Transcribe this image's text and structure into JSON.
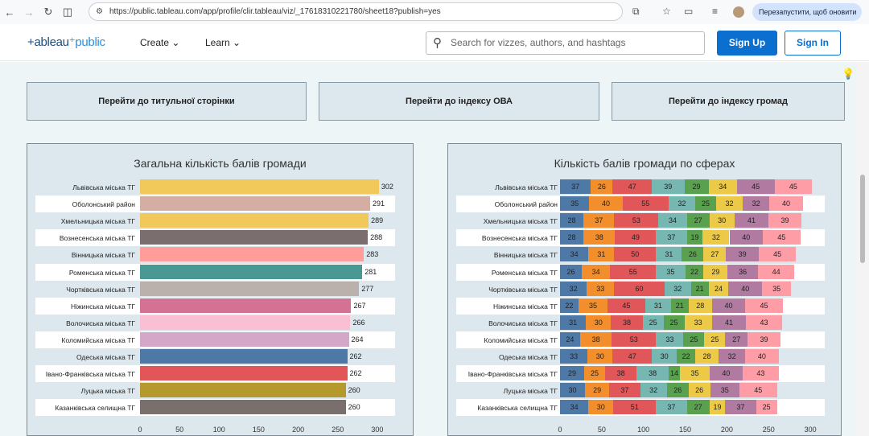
{
  "browser": {
    "url": "https://public.tableau.com/app/profile/clir.tableau/viz/_17618310221780/sheet18?publish=yes",
    "update_label": "Перезапустити, щоб оновити"
  },
  "header": {
    "logo": "+ableau",
    "logo_suffix": "public",
    "create": "Create",
    "learn": "Learn",
    "search_placeholder": "Search for vizzes, authors, and hashtags",
    "sign_up": "Sign Up",
    "sign_in": "Sign In"
  },
  "nav_buttons": [
    "Перейти до титульної сторінки",
    "Перейти до індексу ОВА",
    "Перейти до індексу громад"
  ],
  "chart_data": [
    {
      "type": "bar",
      "orientation": "horizontal",
      "title": "Загальна кількість балів громади",
      "xlim": [
        0,
        300
      ],
      "xticks": [
        0,
        50,
        100,
        150,
        200,
        250,
        300
      ],
      "categories": [
        "Львівська міська ТГ",
        "Оболонський район",
        "Хмельницька міська ТГ",
        "Вознесенська міська ТГ",
        "Вінницька міська ТГ",
        "Роменська міська ТГ",
        "Чортківська міська ТГ",
        "Ніжинська міська ТГ",
        "Волочиська міська ТГ",
        "Коломийська міська ТГ",
        "Одеська міська ТГ",
        "Івано-Франківська міська ТГ",
        "Луцька міська ТГ",
        "Казанківська селищна ТГ"
      ],
      "values": [
        302,
        291,
        289,
        288,
        283,
        281,
        277,
        267,
        266,
        264,
        262,
        262,
        260,
        260
      ],
      "colors": [
        "#f1c85a",
        "#d4aea2",
        "#f1c85a",
        "#7a6e6e",
        "#ff9d9a",
        "#499894",
        "#bab0ac",
        "#d37295",
        "#fabfd2",
        "#d4a6c8",
        "#4e79a7",
        "#e15759",
        "#b6992d",
        "#79706e"
      ]
    },
    {
      "type": "bar",
      "stacked": true,
      "orientation": "horizontal",
      "title": "Кількість балів громади по сферах",
      "xlim": [
        0,
        300
      ],
      "xticks": [
        0,
        50,
        100,
        150,
        200,
        250,
        300
      ],
      "categories": [
        "Львівська міська ТГ",
        "Оболонський район",
        "Хмельницька міська ТГ",
        "Вознесенська міська ТГ",
        "Вінницька міська ТГ",
        "Роменська міська ТГ",
        "Чортківська міська ТГ",
        "Ніжинська міська ТГ",
        "Волочиська міська ТГ",
        "Коломийська міська ТГ",
        "Одеська міська ТГ",
        "Івано-Франківська міська ТГ",
        "Луцька міська ТГ",
        "Казанківська селищна ТГ"
      ],
      "segment_colors": [
        "#4e79a7",
        "#f28e2b",
        "#e15759",
        "#76b7b2",
        "#59a14f",
        "#edc948",
        "#b07aa1",
        "#ff9da7"
      ],
      "values": [
        [
          37,
          26,
          47,
          39,
          29,
          34,
          45,
          45
        ],
        [
          35,
          40,
          55,
          32,
          25,
          32,
          32,
          40
        ],
        [
          28,
          37,
          53,
          34,
          27,
          30,
          41,
          39
        ],
        [
          28,
          38,
          49,
          37,
          19,
          32,
          40,
          45
        ],
        [
          34,
          31,
          50,
          31,
          26,
          27,
          39,
          45
        ],
        [
          26,
          34,
          55,
          35,
          22,
          29,
          36,
          44
        ],
        [
          32,
          33,
          60,
          32,
          21,
          24,
          40,
          35
        ],
        [
          22,
          35,
          45,
          31,
          21,
          28,
          40,
          45
        ],
        [
          31,
          30,
          38,
          25,
          25,
          33,
          41,
          43
        ],
        [
          24,
          38,
          53,
          33,
          25,
          25,
          27,
          39
        ],
        [
          33,
          30,
          47,
          30,
          22,
          28,
          32,
          40
        ],
        [
          29,
          25,
          38,
          38,
          14,
          35,
          40,
          43
        ],
        [
          30,
          29,
          37,
          32,
          26,
          26,
          35,
          45
        ],
        [
          34,
          30,
          51,
          37,
          27,
          19,
          37,
          25
        ]
      ]
    }
  ]
}
